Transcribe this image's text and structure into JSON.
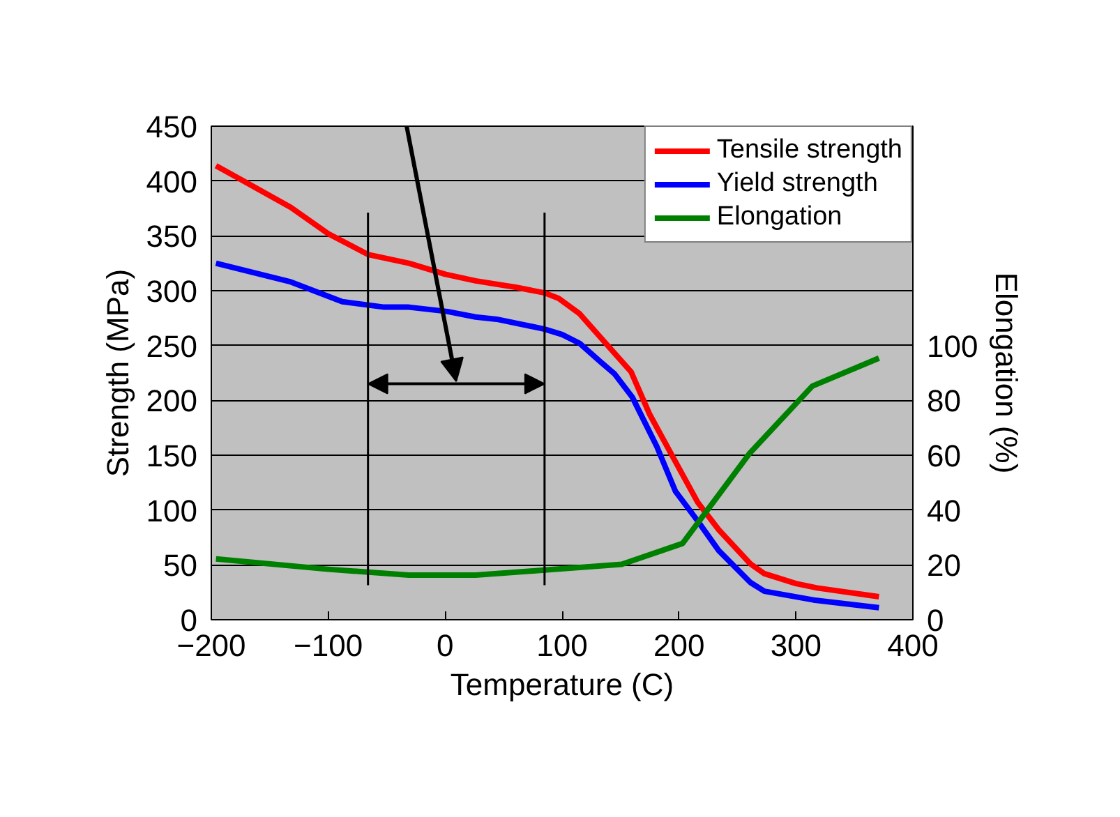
{
  "chart_data": {
    "type": "line",
    "xlabel": "Temperature (C)",
    "ylabel": "Strength (MPa)",
    "y2label": "Elongation (%)",
    "xlim": [
      -200,
      400
    ],
    "xticks": [
      -200,
      -100,
      0,
      100,
      200,
      300,
      400
    ],
    "ylim": [
      0,
      450
    ],
    "yticks": [
      0,
      50,
      100,
      150,
      200,
      250,
      300,
      350,
      400,
      450
    ],
    "y2lim": [
      0,
      180
    ],
    "y2ticks": [
      0,
      20,
      40,
      60,
      80,
      100
    ],
    "grid": "y",
    "legend": "top right",
    "marker": "none",
    "line_style": "solid",
    "series": [
      {
        "name": "Tensile strength",
        "color": "#ff0000",
        "x": [
          -196,
          -132,
          -100,
          -66,
          -31,
          0,
          26,
          61,
          85,
          97,
          115,
          139,
          159,
          175,
          196,
          216,
          234,
          261,
          273,
          300,
          318,
          371
        ],
        "values": [
          414,
          376,
          352,
          333,
          325,
          315,
          309,
          303,
          298,
          293,
          279,
          250,
          226,
          187,
          146,
          107,
          82,
          51,
          42,
          33,
          29,
          21
        ]
      },
      {
        "name": "Yield strength",
        "color": "#0000ff",
        "x": [
          -196,
          -132,
          -88,
          -52,
          -31,
          2,
          26,
          44,
          85,
          100,
          115,
          133,
          145,
          160,
          181,
          197,
          216,
          234,
          261,
          273,
          315,
          371
        ],
        "values": [
          325,
          308,
          290,
          285,
          285,
          281,
          276,
          274,
          265,
          260,
          252,
          235,
          224,
          203,
          158,
          117,
          90,
          63,
          34,
          26,
          18,
          11
        ]
      },
      {
        "name": "Elongation",
        "color": "#008000",
        "axis": "y2",
        "x": [
          -196,
          -100,
          -31,
          26,
          85,
          151,
          203,
          260,
          314,
          371
        ],
        "values": [
          22.2,
          18.4,
          16.3,
          16.3,
          18.1,
          20.2,
          27.8,
          60.5,
          85.2,
          95.4
        ]
      }
    ],
    "ref_lines": [
      {
        "axis": "x",
        "value": -66,
        "color": "#000000"
      },
      {
        "axis": "x",
        "value": 85,
        "color": "#000000"
      }
    ]
  }
}
